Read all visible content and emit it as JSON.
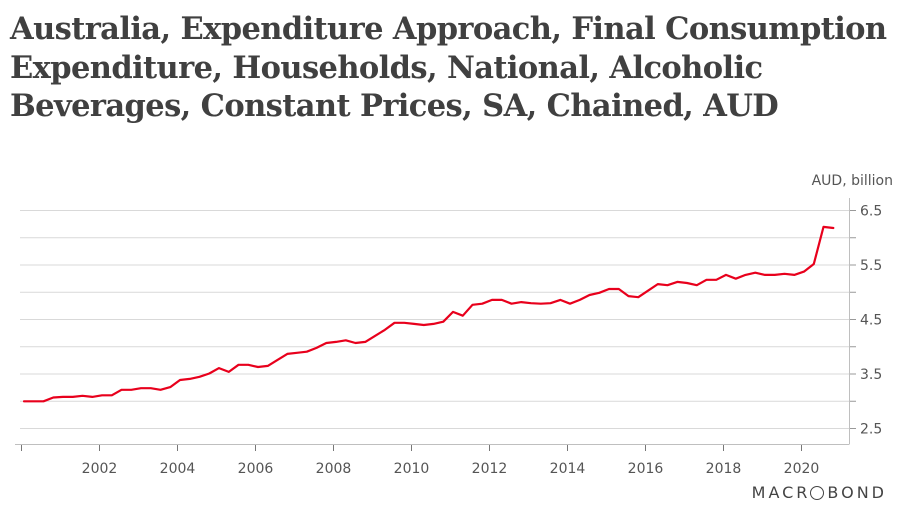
{
  "title": "Australia, Expenditure Approach, Final Consumption Expenditure, Households, National, Alcoholic Beverages, Constant Prices, SA, Chained, AUD",
  "branding": {
    "logo_text": "MACROBOND"
  },
  "colors": {
    "series": "#e8001c",
    "grid": "#d9d9d9",
    "axis": "#bfbfbf",
    "text": "#555555",
    "title": "#404040"
  },
  "chart_data": {
    "type": "line",
    "title": "Australia, Expenditure Approach, Final Consumption Expenditure, Households, National, Alcoholic Beverages, Constant Prices, SA, Chained, AUD",
    "xlabel": "",
    "ylabel": "AUD, billion",
    "y_axis_position": "right",
    "ylim": [
      2.5,
      6.5
    ],
    "xlim": [
      2000.0,
      2021.25
    ],
    "y_ticks": [
      2.5,
      3.0,
      3.5,
      4.0,
      4.5,
      5.0,
      5.5,
      6.0,
      6.5
    ],
    "y_tick_labels": [
      "2.5",
      "",
      "3.5",
      "",
      "4.5",
      "",
      "5.5",
      "",
      "6.5"
    ],
    "x_ticks": [
      2000,
      2002,
      2004,
      2006,
      2008,
      2010,
      2012,
      2014,
      2016,
      2018,
      2020
    ],
    "x_tick_labels": [
      "",
      "2002",
      "2004",
      "2006",
      "2008",
      "2010",
      "2012",
      "2014",
      "2016",
      "2018",
      "2020"
    ],
    "grid": true,
    "legend": "none",
    "series": [
      {
        "name": "Alcoholic Beverages, Constant Prices, SA, Chained",
        "frequency": "quarterly",
        "start": "2000 Q1",
        "values": [
          2.99,
          2.99,
          2.99,
          3.06,
          3.07,
          3.07,
          3.09,
          3.07,
          3.1,
          3.1,
          3.2,
          3.2,
          3.23,
          3.23,
          3.2,
          3.25,
          3.38,
          3.4,
          3.44,
          3.5,
          3.6,
          3.53,
          3.66,
          3.66,
          3.62,
          3.64,
          3.75,
          3.86,
          3.88,
          3.9,
          3.97,
          4.06,
          4.08,
          4.11,
          4.06,
          4.08,
          4.19,
          4.3,
          4.43,
          4.43,
          4.41,
          4.39,
          4.41,
          4.45,
          4.63,
          4.56,
          4.76,
          4.78,
          4.85,
          4.85,
          4.78,
          4.81,
          4.79,
          4.78,
          4.79,
          4.85,
          4.78,
          4.85,
          4.94,
          4.98,
          5.05,
          5.05,
          4.92,
          4.9,
          5.02,
          5.14,
          5.12,
          5.18,
          5.16,
          5.12,
          5.22,
          5.22,
          5.31,
          5.24,
          5.31,
          5.35,
          5.31,
          5.31,
          5.33,
          5.31,
          5.37,
          5.51,
          6.19,
          6.17
        ]
      }
    ]
  }
}
